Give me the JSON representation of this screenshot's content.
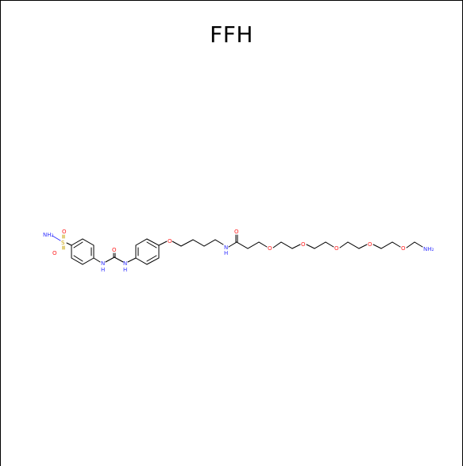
{
  "title": "FFH",
  "atoms": {
    "nh2_sulfonamide": "NH₂",
    "s": "S",
    "o_s_top": "O",
    "o_s_bottom": "O",
    "nh_1": "H",
    "n_1": "N",
    "o_urea": "O",
    "nh_2": "H",
    "n_2": "N",
    "o_ether_1": "O",
    "nh_amide_h": "H",
    "n_amide": "N",
    "o_amide": "O",
    "o_peg_1": "O",
    "o_peg_2": "O",
    "o_peg_3": "O",
    "o_peg_4": "O",
    "o_peg_5": "O",
    "nh2_terminal": "NH₂"
  },
  "colors": {
    "carbon_bond": "#000000",
    "nitrogen": "#3333ff",
    "oxygen": "#ff2020",
    "sulfur": "#c8a000"
  }
}
